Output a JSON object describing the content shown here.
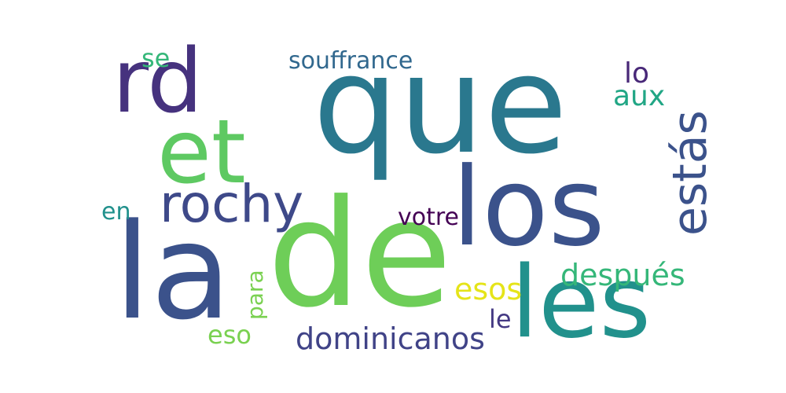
{
  "words": [
    {
      "id": "que",
      "text": "que",
      "color": "#2a788e",
      "orientation": "horizontal"
    },
    {
      "id": "de",
      "text": "de",
      "color": "#6ece58",
      "orientation": "horizontal"
    },
    {
      "id": "la",
      "text": "la",
      "color": "#3b528b",
      "orientation": "horizontal"
    },
    {
      "id": "los",
      "text": "los",
      "color": "#3b528b",
      "orientation": "horizontal"
    },
    {
      "id": "les",
      "text": "les",
      "color": "#21918c",
      "orientation": "horizontal"
    },
    {
      "id": "rd",
      "text": "rd",
      "color": "#46327e",
      "orientation": "horizontal"
    },
    {
      "id": "et",
      "text": "et",
      "color": "#5ec962",
      "orientation": "horizontal"
    },
    {
      "id": "rochy",
      "text": "rochy",
      "color": "#3e4989",
      "orientation": "horizontal"
    },
    {
      "id": "estas",
      "text": "estás",
      "color": "#3b528b",
      "orientation": "vertical"
    },
    {
      "id": "souffrance",
      "text": "souffrance",
      "color": "#31688e",
      "orientation": "horizontal"
    },
    {
      "id": "se",
      "text": "se",
      "color": "#35b779",
      "orientation": "horizontal"
    },
    {
      "id": "lo",
      "text": "lo",
      "color": "#482878",
      "orientation": "horizontal"
    },
    {
      "id": "aux",
      "text": "aux",
      "color": "#21a685",
      "orientation": "horizontal"
    },
    {
      "id": "en",
      "text": "en",
      "color": "#21918c",
      "orientation": "horizontal"
    },
    {
      "id": "votre",
      "text": "votre",
      "color": "#440154",
      "orientation": "horizontal"
    },
    {
      "id": "despues",
      "text": "después",
      "color": "#35b779",
      "orientation": "horizontal"
    },
    {
      "id": "esos",
      "text": "esos",
      "color": "#e5e419",
      "orientation": "horizontal"
    },
    {
      "id": "para",
      "text": "para",
      "color": "#7ad151",
      "orientation": "vertical"
    },
    {
      "id": "le",
      "text": "le",
      "color": "#443983",
      "orientation": "horizontal"
    },
    {
      "id": "eso",
      "text": "eso",
      "color": "#7ad151",
      "orientation": "horizontal"
    },
    {
      "id": "dominicanos",
      "text": "dominicanos",
      "color": "#404387",
      "orientation": "horizontal"
    }
  ]
}
